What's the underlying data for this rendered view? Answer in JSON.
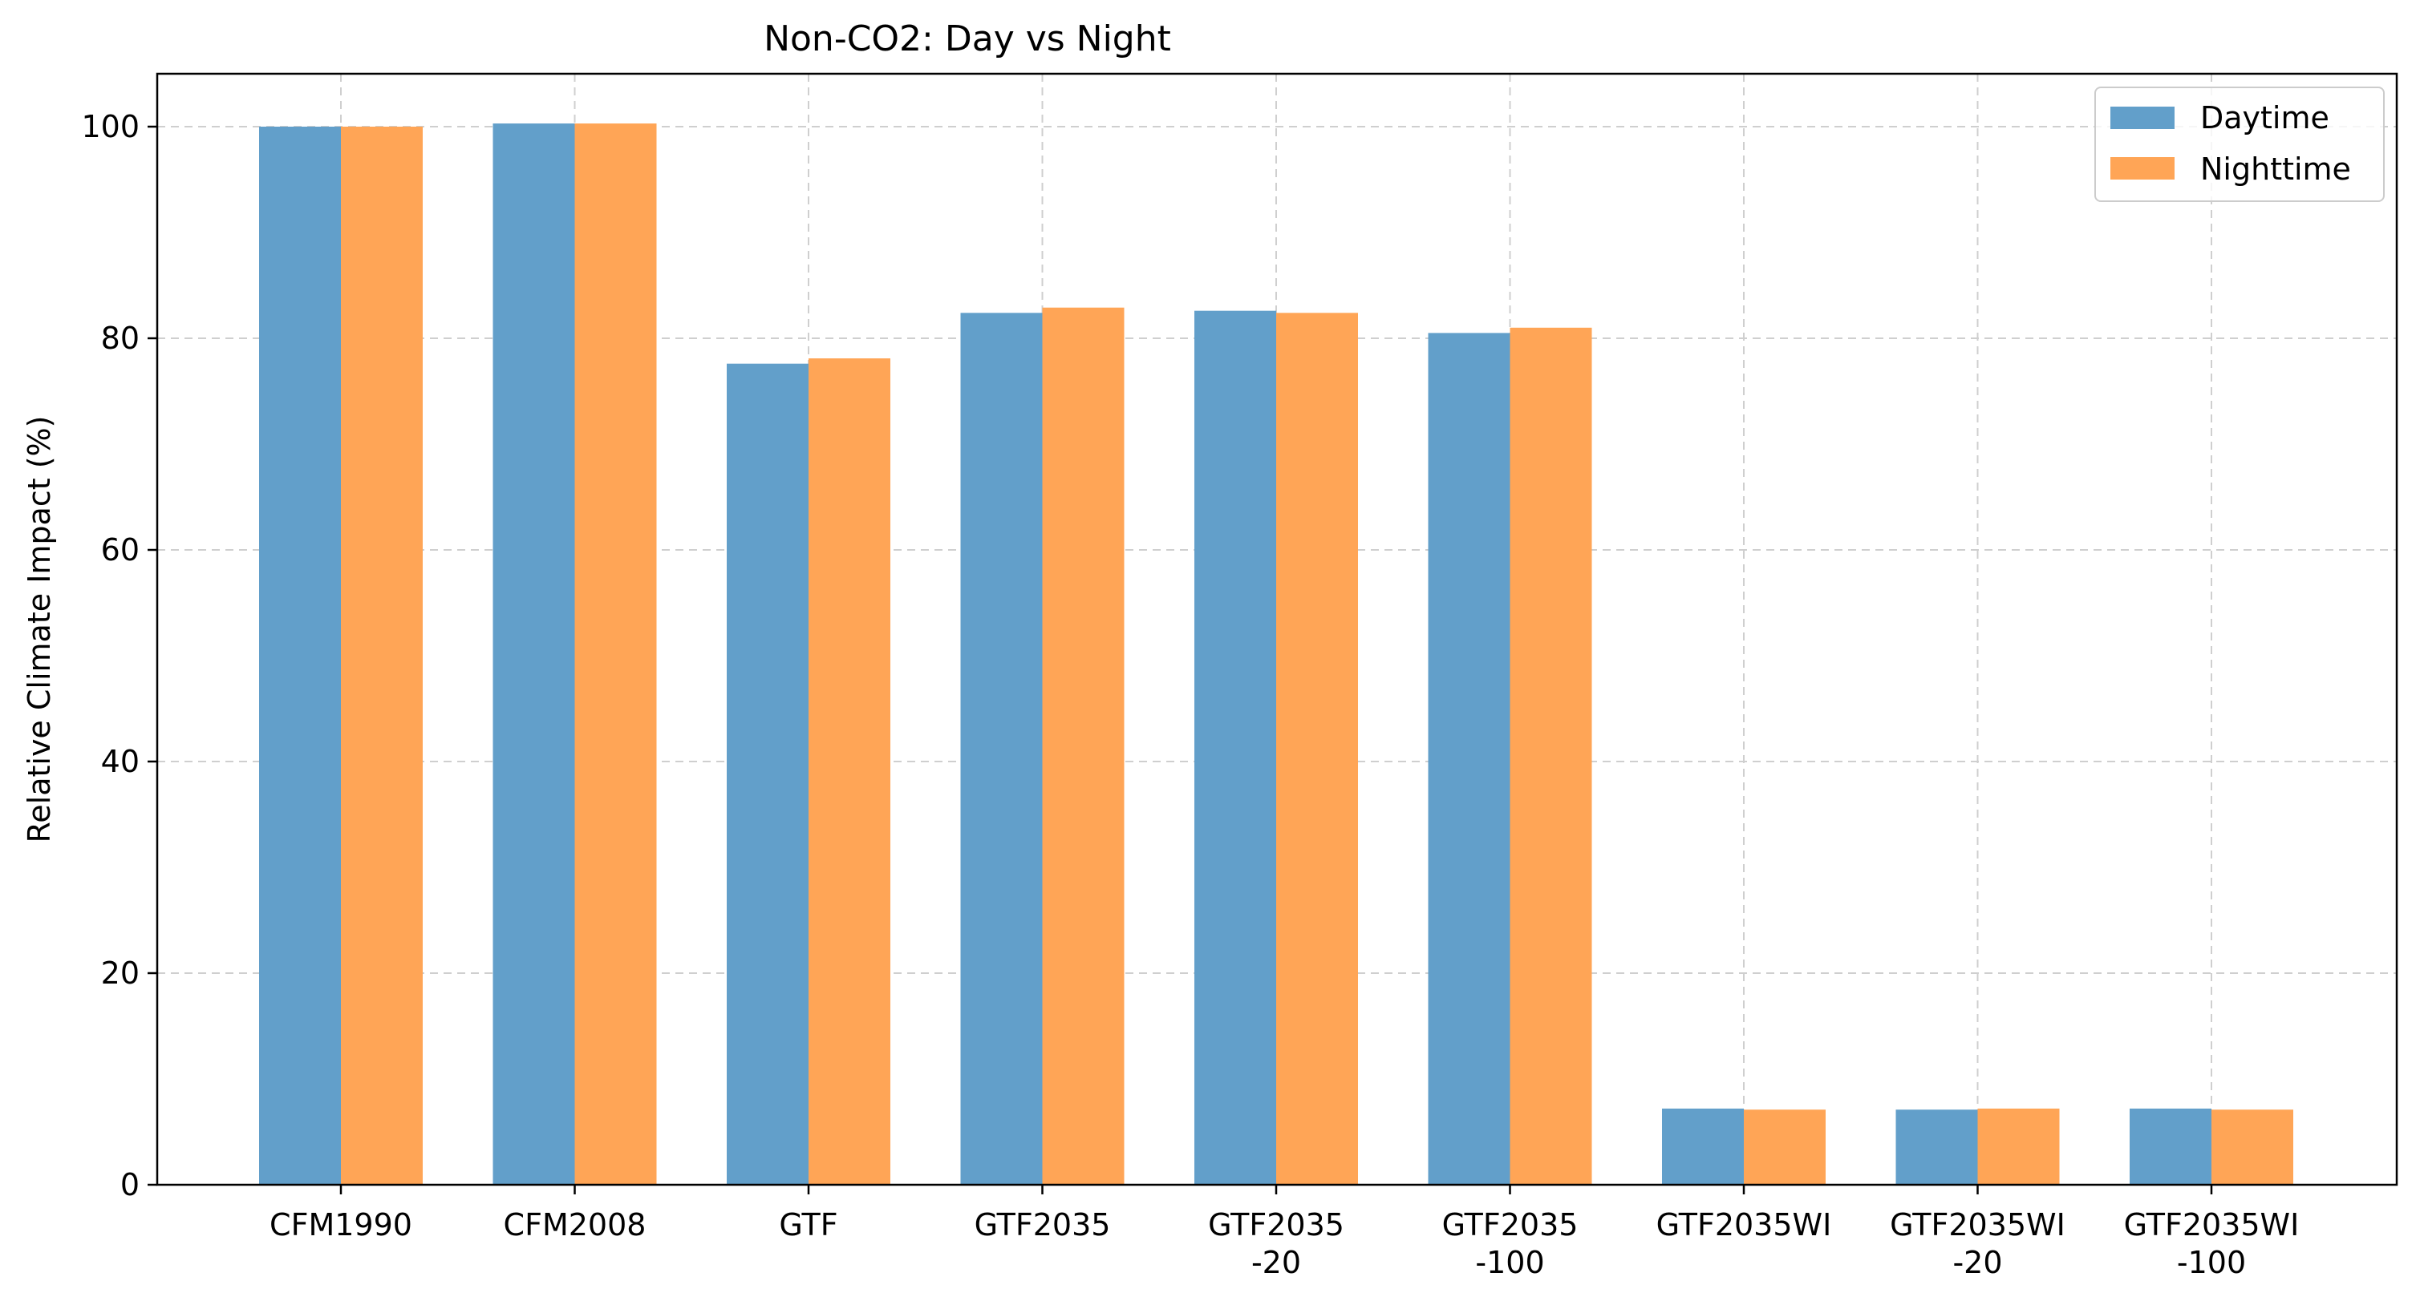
{
  "chart_data": {
    "type": "bar",
    "title": "Non-CO2: Day vs Night",
    "xlabel": "",
    "ylabel": "Relative Climate Impact (%)",
    "categories": [
      [
        "CFM1990"
      ],
      [
        "CFM2008"
      ],
      [
        "GTF"
      ],
      [
        "GTF2035"
      ],
      [
        "GTF2035",
        "-20"
      ],
      [
        "GTF2035",
        "-100"
      ],
      [
        "GTF2035WI"
      ],
      [
        "GTF2035WI",
        "-20"
      ],
      [
        "GTF2035WI",
        "-100"
      ]
    ],
    "series": [
      {
        "name": "Daytime",
        "color": "#629fca",
        "values": [
          100.0,
          100.3,
          77.6,
          82.4,
          82.6,
          80.5,
          7.2,
          7.1,
          7.2
        ]
      },
      {
        "name": "Nighttime",
        "color": "#ffa556",
        "values": [
          100.0,
          100.3,
          78.1,
          82.9,
          82.4,
          81.0,
          7.1,
          7.2,
          7.1
        ]
      }
    ],
    "ylim": [
      0,
      105
    ],
    "yticks": [
      0,
      20,
      40,
      60,
      80,
      100
    ],
    "grid": true,
    "legend_position": "top-right"
  }
}
